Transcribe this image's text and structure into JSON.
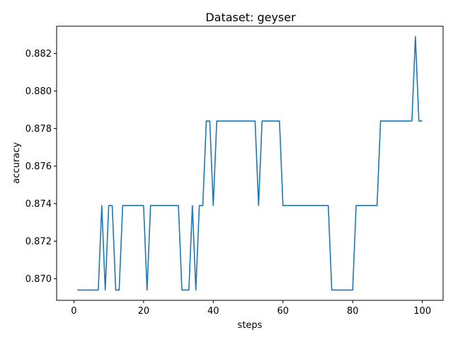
{
  "chart_data": {
    "type": "line",
    "title": "Dataset: geyser",
    "xlabel": "steps",
    "ylabel": "accuracy",
    "xlim": [
      -4.95,
      105.95
    ],
    "ylim": [
      0.86885,
      0.88345
    ],
    "xticks": [
      0,
      20,
      40,
      60,
      80,
      100
    ],
    "yticks": [
      0.87,
      0.872,
      0.874,
      0.876,
      0.878,
      0.88,
      0.882
    ],
    "ytick_labels": [
      "0.870",
      "0.872",
      "0.874",
      "0.876",
      "0.878",
      "0.880",
      "0.882"
    ],
    "grid": false,
    "line_color": "#1f77b4",
    "series": [
      {
        "x": [
          1,
          2,
          3,
          4,
          5,
          6,
          7,
          8,
          9,
          10,
          11,
          12,
          13,
          14,
          15,
          16,
          17,
          18,
          19,
          20,
          21,
          22,
          23,
          24,
          25,
          26,
          27,
          28,
          29,
          30,
          31,
          32,
          33,
          34,
          35,
          36,
          37,
          38,
          39,
          40,
          41,
          42,
          43,
          44,
          45,
          46,
          47,
          48,
          49,
          50,
          51,
          52,
          53,
          54,
          55,
          56,
          57,
          58,
          59,
          60,
          61,
          62,
          63,
          64,
          65,
          66,
          67,
          68,
          69,
          70,
          71,
          72,
          73,
          74,
          75,
          76,
          77,
          78,
          79,
          80,
          81,
          82,
          83,
          84,
          85,
          86,
          87,
          88,
          89,
          90,
          91,
          92,
          93,
          94,
          95,
          96,
          97,
          98,
          99,
          100
        ],
        "values": [
          0.8694,
          0.8694,
          0.8694,
          0.8694,
          0.8694,
          0.8694,
          0.8694,
          0.8739,
          0.8694,
          0.8739,
          0.8739,
          0.8694,
          0.8694,
          0.8739,
          0.8739,
          0.8739,
          0.8739,
          0.8739,
          0.8739,
          0.8739,
          0.8694,
          0.8739,
          0.8739,
          0.8739,
          0.8739,
          0.8739,
          0.8739,
          0.8739,
          0.8739,
          0.8739,
          0.8694,
          0.8694,
          0.8694,
          0.8739,
          0.8694,
          0.8739,
          0.8739,
          0.8784,
          0.8784,
          0.8739,
          0.8784,
          0.8784,
          0.8784,
          0.8784,
          0.8784,
          0.8784,
          0.8784,
          0.8784,
          0.8784,
          0.8784,
          0.8784,
          0.8784,
          0.8739,
          0.8784,
          0.8784,
          0.8784,
          0.8784,
          0.8784,
          0.8784,
          0.8739,
          0.8739,
          0.8739,
          0.8739,
          0.8739,
          0.8739,
          0.8739,
          0.8739,
          0.8739,
          0.8739,
          0.8739,
          0.8739,
          0.8739,
          0.8739,
          0.8694,
          0.8694,
          0.8694,
          0.8694,
          0.8694,
          0.8694,
          0.8694,
          0.8739,
          0.8739,
          0.8739,
          0.8739,
          0.8739,
          0.8739,
          0.8739,
          0.8784,
          0.8784,
          0.8784,
          0.8784,
          0.8784,
          0.8784,
          0.8784,
          0.8784,
          0.8784,
          0.8784,
          0.8829,
          0.8784,
          0.8784
        ]
      }
    ]
  }
}
